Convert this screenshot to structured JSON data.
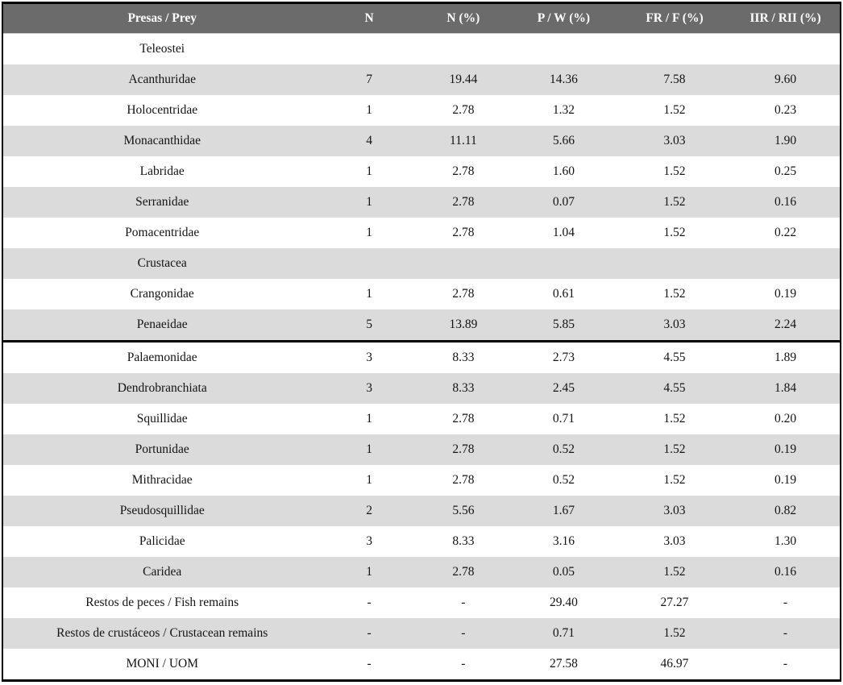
{
  "colors": {
    "header_bg": "#6b6b6b",
    "header_text": "#ffffff",
    "stripe_bg": "#dbdbdb",
    "row_bg": "#ffffff",
    "border": "#000000",
    "body_text": "#141414"
  },
  "table": {
    "columns": [
      "Presas / Prey",
      "N",
      "N (%)",
      "P / W (%)",
      "FR / F (%)",
      "IIR / RII (%)"
    ],
    "thick_divider_after_row_index": 9,
    "rows": [
      {
        "group": true,
        "cells": [
          "Teleostei",
          "",
          "",
          "",
          "",
          ""
        ]
      },
      {
        "group": false,
        "cells": [
          "Acanthuridae",
          "7",
          "19.44",
          "14.36",
          "7.58",
          "9.60"
        ]
      },
      {
        "group": false,
        "cells": [
          "Holocentridae",
          "1",
          "2.78",
          "1.32",
          "1.52",
          "0.23"
        ]
      },
      {
        "group": false,
        "cells": [
          "Monacanthidae",
          "4",
          "11.11",
          "5.66",
          "3.03",
          "1.90"
        ]
      },
      {
        "group": false,
        "cells": [
          "Labridae",
          "1",
          "2.78",
          "1.60",
          "1.52",
          "0.25"
        ]
      },
      {
        "group": false,
        "cells": [
          "Serranidae",
          "1",
          "2.78",
          "0.07",
          "1.52",
          "0.16"
        ]
      },
      {
        "group": false,
        "cells": [
          "Pomacentridae",
          "1",
          "2.78",
          "1.04",
          "1.52",
          "0.22"
        ]
      },
      {
        "group": true,
        "cells": [
          "Crustacea",
          "",
          "",
          "",
          "",
          ""
        ]
      },
      {
        "group": false,
        "cells": [
          "Crangonidae",
          "1",
          "2.78",
          "0.61",
          "1.52",
          "0.19"
        ]
      },
      {
        "group": false,
        "cells": [
          "Penaeidae",
          "5",
          "13.89",
          "5.85",
          "3.03",
          "2.24"
        ]
      },
      {
        "group": false,
        "cells": [
          "Palaemonidae",
          "3",
          "8.33",
          "2.73",
          "4.55",
          "1.89"
        ]
      },
      {
        "group": false,
        "cells": [
          "Dendrobranchiata",
          "3",
          "8.33",
          "2.45",
          "4.55",
          "1.84"
        ]
      },
      {
        "group": false,
        "cells": [
          "Squillidae",
          "1",
          "2.78",
          "0.71",
          "1.52",
          "0.20"
        ]
      },
      {
        "group": false,
        "cells": [
          "Portunidae",
          "1",
          "2.78",
          "0.52",
          "1.52",
          "0.19"
        ]
      },
      {
        "group": false,
        "cells": [
          "Mithracidae",
          "1",
          "2.78",
          "0.52",
          "1.52",
          "0.19"
        ]
      },
      {
        "group": false,
        "cells": [
          "Pseudosquillidae",
          "2",
          "5.56",
          "1.67",
          "3.03",
          "0.82"
        ]
      },
      {
        "group": false,
        "cells": [
          "Palicidae",
          "3",
          "8.33",
          "3.16",
          "3.03",
          "1.30"
        ]
      },
      {
        "group": false,
        "cells": [
          "Caridea",
          "1",
          "2.78",
          "0.05",
          "1.52",
          "0.16"
        ]
      },
      {
        "group": false,
        "cells": [
          "Restos de peces / Fish remains",
          "-",
          "-",
          "29.40",
          "27.27",
          "-"
        ]
      },
      {
        "group": false,
        "cells": [
          "Restos de crustáceos / Crustacean remains",
          "-",
          "-",
          "0.71",
          "1.52",
          "-"
        ]
      },
      {
        "group": false,
        "cells": [
          "MONI / UOM",
          "-",
          "-",
          "27.58",
          "46.97",
          "-"
        ]
      }
    ]
  }
}
